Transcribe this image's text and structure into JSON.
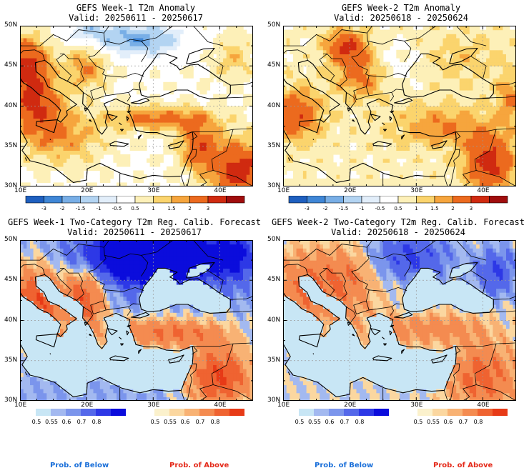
{
  "panels": [
    {
      "title": "GEFS Week-1 T2m Anomaly",
      "valid": "Valid: 20250611 - 20250617",
      "kind": "anomaly"
    },
    {
      "title": "GEFS Week-2 T2m Anomaly",
      "valid": "Valid: 20250618 - 20250624",
      "kind": "anomaly"
    },
    {
      "title": "GEFS Week-1 Two-Category T2m Reg. Calib. Forecast",
      "valid": "Valid: 20250611 - 20250617",
      "kind": "probability"
    },
    {
      "title": "GEFS Week-2 Two-Category T2m Reg. Calib. Forecast",
      "valid": "Valid: 20250618 - 20250624",
      "kind": "probability"
    }
  ],
  "axes": {
    "lat_labels": [
      "50N",
      "45N",
      "40N",
      "35N",
      "30N"
    ],
    "lon_labels": [
      "10E",
      "20E",
      "30E",
      "40E"
    ]
  },
  "anomaly_colorbar": {
    "labels": [
      "-3",
      "-2",
      "-1.5",
      "-1",
      "-0.5",
      "0.5",
      "1",
      "1.5",
      "2",
      "3"
    ],
    "colors": [
      "#1e5fbf",
      "#3f86d6",
      "#78aee6",
      "#b3d4f2",
      "#e2eefa",
      "#ffffff",
      "#fdf0b8",
      "#fbd46d",
      "#f6a53d",
      "#ec6a1e",
      "#d02a10",
      "#a00d0d"
    ]
  },
  "prob_below": {
    "labels": [
      "0.5",
      "0.55",
      "0.6",
      "0.7",
      "0.8"
    ],
    "colors": [
      "#c8e6f5",
      "#a3b9f0",
      "#7b95ec",
      "#5468ea",
      "#2d38e6",
      "#0b0cdc"
    ],
    "caption": "Prob. of Below",
    "caption_color": "#1a6fd9"
  },
  "prob_above": {
    "labels": [
      "0.5",
      "0.55",
      "0.6",
      "0.7",
      "0.8"
    ],
    "colors": [
      "#fbf1cc",
      "#fbd7a0",
      "#f8b274",
      "#f48b50",
      "#ef6331",
      "#e73a17"
    ],
    "caption": "Prob. of Above",
    "caption_color": "#e42a1a"
  }
}
